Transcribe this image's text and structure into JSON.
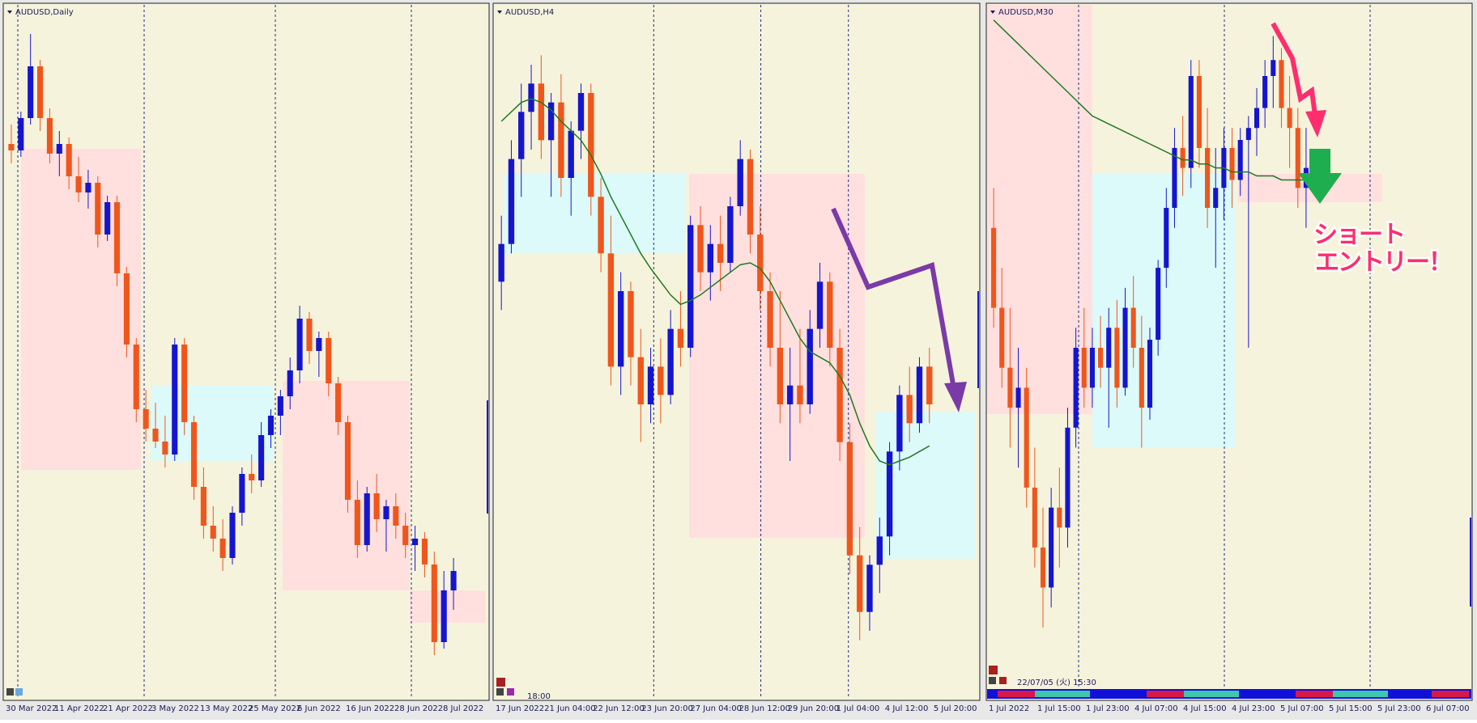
{
  "chart_data": [
    {
      "type": "candlestick",
      "title": "AUDUSD,Daily",
      "up_color": "#1515d0",
      "down_color": "#f0561c",
      "x_labels": [
        "30 Mar 2022",
        "11 Apr 2022",
        "21 Apr 2022",
        "3 May 2022",
        "13 May 2022",
        "25 May 2022",
        "6 Jun 2022",
        "16 Jun 2022",
        "28 Jun 2022",
        "8 Jul 2022"
      ],
      "ylim": [
        0.665,
        0.77
      ],
      "ohlc": [
        [
          0.749,
          0.752,
          0.746,
          0.748
        ],
        [
          0.748,
          0.754,
          0.747,
          0.753
        ],
        [
          0.753,
          0.766,
          0.752,
          0.761
        ],
        [
          0.761,
          0.762,
          0.751,
          0.753
        ],
        [
          0.753,
          0.7545,
          0.746,
          0.7475
        ],
        [
          0.7475,
          0.751,
          0.744,
          0.749
        ],
        [
          0.749,
          0.75,
          0.742,
          0.744
        ],
        [
          0.744,
          0.747,
          0.74,
          0.7415
        ],
        [
          0.7415,
          0.745,
          0.739,
          0.743
        ],
        [
          0.743,
          0.744,
          0.733,
          0.735
        ],
        [
          0.735,
          0.741,
          0.734,
          0.74
        ],
        [
          0.74,
          0.741,
          0.727,
          0.729
        ],
        [
          0.729,
          0.73,
          0.716,
          0.718
        ],
        [
          0.718,
          0.719,
          0.706,
          0.708
        ],
        [
          0.708,
          0.711,
          0.703,
          0.705
        ],
        [
          0.705,
          0.709,
          0.702,
          0.703
        ],
        [
          0.703,
          0.707,
          0.699,
          0.701
        ],
        [
          0.701,
          0.719,
          0.7,
          0.718
        ],
        [
          0.718,
          0.719,
          0.704,
          0.706
        ],
        [
          0.706,
          0.707,
          0.694,
          0.696
        ],
        [
          0.696,
          0.699,
          0.688,
          0.69
        ],
        [
          0.69,
          0.693,
          0.686,
          0.688
        ],
        [
          0.688,
          0.691,
          0.683,
          0.685
        ],
        [
          0.685,
          0.693,
          0.684,
          0.692
        ],
        [
          0.692,
          0.699,
          0.69,
          0.698
        ],
        [
          0.698,
          0.701,
          0.695,
          0.697
        ],
        [
          0.697,
          0.706,
          0.696,
          0.704
        ],
        [
          0.704,
          0.708,
          0.702,
          0.707
        ],
        [
          0.707,
          0.711,
          0.704,
          0.71
        ],
        [
          0.71,
          0.716,
          0.708,
          0.714
        ],
        [
          0.714,
          0.724,
          0.712,
          0.722
        ],
        [
          0.722,
          0.723,
          0.715,
          0.717
        ],
        [
          0.717,
          0.72,
          0.713,
          0.719
        ],
        [
          0.719,
          0.72,
          0.71,
          0.712
        ],
        [
          0.712,
          0.713,
          0.704,
          0.706
        ],
        [
          0.706,
          0.707,
          0.692,
          0.694
        ],
        [
          0.694,
          0.697,
          0.685,
          0.687
        ],
        [
          0.687,
          0.696,
          0.686,
          0.695
        ],
        [
          0.695,
          0.698,
          0.689,
          0.691
        ],
        [
          0.691,
          0.694,
          0.686,
          0.693
        ],
        [
          0.693,
          0.695,
          0.688,
          0.69
        ],
        [
          0.69,
          0.692,
          0.685,
          0.687
        ],
        [
          0.687,
          0.69,
          0.683,
          0.688
        ],
        [
          0.688,
          0.689,
          0.682,
          0.684
        ],
        [
          0.684,
          0.686,
          0.67,
          0.672
        ],
        [
          0.672,
          0.683,
          0.671,
          0.68
        ],
        [
          0.68,
          0.685,
          0.677,
          0.683
        ]
      ]
    },
    {
      "type": "candlestick",
      "title": "AUDUSD,H4",
      "up_color": "#1515d0",
      "down_color": "#f0561c",
      "ma_color": "#1f7a1f",
      "x_labels": [
        "17 Jun 2022",
        "21 Jun 04:00",
        "22 Jun 12:00",
        "23 Jun 20:00",
        "27 Jun 04:00",
        "28 Jun 12:00",
        "29 Jun 20:00",
        "1 Jul 04:00",
        "4 Jul 12:00",
        "5 Jul 20:00"
      ],
      "ylim": [
        0.674,
        0.71
      ],
      "ohlc": [
        [
          0.6955,
          0.699,
          0.694,
          0.6975
        ],
        [
          0.6975,
          0.703,
          0.697,
          0.702
        ],
        [
          0.702,
          0.706,
          0.7,
          0.7045
        ],
        [
          0.7045,
          0.707,
          0.7025,
          0.706
        ],
        [
          0.706,
          0.7075,
          0.702,
          0.703
        ],
        [
          0.703,
          0.7055,
          0.7,
          0.705
        ],
        [
          0.705,
          0.7065,
          0.7,
          0.701
        ],
        [
          0.701,
          0.704,
          0.699,
          0.7035
        ],
        [
          0.7035,
          0.706,
          0.702,
          0.7055
        ],
        [
          0.7055,
          0.706,
          0.699,
          0.7
        ],
        [
          0.7,
          0.701,
          0.696,
          0.697
        ],
        [
          0.697,
          0.699,
          0.69,
          0.691
        ],
        [
          0.691,
          0.696,
          0.6895,
          0.695
        ],
        [
          0.695,
          0.6955,
          0.69,
          0.6915
        ],
        [
          0.6915,
          0.693,
          0.687,
          0.689
        ],
        [
          0.689,
          0.692,
          0.688,
          0.691
        ],
        [
          0.691,
          0.6925,
          0.688,
          0.6895
        ],
        [
          0.6895,
          0.694,
          0.689,
          0.693
        ],
        [
          0.693,
          0.695,
          0.691,
          0.692
        ],
        [
          0.692,
          0.699,
          0.6915,
          0.6985
        ],
        [
          0.6985,
          0.6995,
          0.695,
          0.696
        ],
        [
          0.696,
          0.6985,
          0.6945,
          0.6975
        ],
        [
          0.6975,
          0.699,
          0.695,
          0.6965
        ],
        [
          0.6965,
          0.7,
          0.696,
          0.6995
        ],
        [
          0.6995,
          0.703,
          0.699,
          0.702
        ],
        [
          0.702,
          0.7025,
          0.697,
          0.698
        ],
        [
          0.698,
          0.6995,
          0.694,
          0.695
        ],
        [
          0.695,
          0.696,
          0.691,
          0.692
        ],
        [
          0.692,
          0.695,
          0.688,
          0.689
        ],
        [
          0.689,
          0.692,
          0.686,
          0.69
        ],
        [
          0.69,
          0.693,
          0.688,
          0.689
        ],
        [
          0.689,
          0.694,
          0.6885,
          0.693
        ],
        [
          0.693,
          0.6965,
          0.692,
          0.6955
        ],
        [
          0.6955,
          0.696,
          0.691,
          0.692
        ],
        [
          0.692,
          0.693,
          0.686,
          0.687
        ],
        [
          0.687,
          0.688,
          0.68,
          0.681
        ],
        [
          0.681,
          0.6825,
          0.6765,
          0.678
        ],
        [
          0.678,
          0.681,
          0.677,
          0.6805
        ],
        [
          0.6805,
          0.683,
          0.679,
          0.682
        ],
        [
          0.682,
          0.687,
          0.681,
          0.6865
        ],
        [
          0.6865,
          0.69,
          0.6855,
          0.6895
        ],
        [
          0.6895,
          0.691,
          0.687,
          0.688
        ],
        [
          0.688,
          0.6915,
          0.6875,
          0.691
        ],
        [
          0.691,
          0.692,
          0.688,
          0.689
        ]
      ],
      "ma_values": [
        0.704,
        0.7045,
        0.705,
        0.7052,
        0.705,
        0.7046,
        0.704,
        0.7035,
        0.703,
        0.7022,
        0.7012,
        0.7,
        0.699,
        0.698,
        0.697,
        0.6962,
        0.6955,
        0.6948,
        0.6943,
        0.6945,
        0.6948,
        0.6952,
        0.6956,
        0.696,
        0.6964,
        0.6965,
        0.6962,
        0.6955,
        0.6945,
        0.6935,
        0.6925,
        0.6918,
        0.6915,
        0.6912,
        0.6905,
        0.6895,
        0.688,
        0.6868,
        0.686,
        0.6858,
        0.686,
        0.6862,
        0.6865,
        0.6868
      ]
    },
    {
      "type": "candlestick",
      "title": "AUDUSD,M30",
      "up_color": "#1515d0",
      "down_color": "#f0561c",
      "ma_color": "#1f7a1f",
      "x_labels": [
        "1 Jul 2022",
        "1 Jul 15:00",
        "1 Jul 23:00",
        "4 Jul 07:00",
        "4 Jul 15:00",
        "4 Jul 23:00",
        "5 Jul 07:00",
        "5 Jul 15:00",
        "5 Jul 23:00",
        "6 Jul 07:00"
      ],
      "ylim": [
        0.6755,
        0.6925
      ],
      "ohlc": [
        [
          0.687,
          0.688,
          0.6845,
          0.685
        ],
        [
          0.685,
          0.686,
          0.683,
          0.6835
        ],
        [
          0.6835,
          0.685,
          0.6815,
          0.6825
        ],
        [
          0.6825,
          0.684,
          0.681,
          0.683
        ],
        [
          0.683,
          0.6835,
          0.68,
          0.6805
        ],
        [
          0.6805,
          0.6815,
          0.6785,
          0.679
        ],
        [
          0.679,
          0.68,
          0.677,
          0.678
        ],
        [
          0.678,
          0.6805,
          0.6775,
          0.68
        ],
        [
          0.68,
          0.681,
          0.6785,
          0.6795
        ],
        [
          0.6795,
          0.6825,
          0.679,
          0.682
        ],
        [
          0.682,
          0.6845,
          0.6815,
          0.684
        ],
        [
          0.684,
          0.685,
          0.6825,
          0.683
        ],
        [
          0.683,
          0.6845,
          0.6825,
          0.684
        ],
        [
          0.684,
          0.6848,
          0.683,
          0.6835
        ],
        [
          0.6835,
          0.685,
          0.682,
          0.6845
        ],
        [
          0.6845,
          0.6852,
          0.6825,
          0.683
        ],
        [
          0.683,
          0.6855,
          0.6828,
          0.685
        ],
        [
          0.685,
          0.6858,
          0.6835,
          0.684
        ],
        [
          0.684,
          0.6848,
          0.6815,
          0.6825
        ],
        [
          0.6825,
          0.6845,
          0.6822,
          0.6842
        ],
        [
          0.6842,
          0.6862,
          0.6838,
          0.686
        ],
        [
          0.686,
          0.688,
          0.6855,
          0.6875
        ],
        [
          0.6875,
          0.6895,
          0.687,
          0.689
        ],
        [
          0.689,
          0.6898,
          0.6878,
          0.6885
        ],
        [
          0.6885,
          0.6912,
          0.688,
          0.6908
        ],
        [
          0.6908,
          0.6912,
          0.6885,
          0.689
        ],
        [
          0.689,
          0.69,
          0.687,
          0.6875
        ],
        [
          0.6875,
          0.689,
          0.686,
          0.688
        ],
        [
          0.688,
          0.6895,
          0.6872,
          0.689
        ],
        [
          0.689,
          0.6895,
          0.6875,
          0.6882
        ],
        [
          0.6882,
          0.6895,
          0.6878,
          0.6892
        ],
        [
          0.6892,
          0.6898,
          0.684,
          0.6895
        ],
        [
          0.6895,
          0.6905,
          0.6888,
          0.69
        ],
        [
          0.69,
          0.6912,
          0.6895,
          0.6908
        ],
        [
          0.6908,
          0.6918,
          0.69,
          0.6912
        ],
        [
          0.6912,
          0.6915,
          0.6895,
          0.69
        ],
        [
          0.69,
          0.6908,
          0.6885,
          0.6895
        ],
        [
          0.6895,
          0.69,
          0.6875,
          0.688
        ],
        [
          0.688,
          0.6895,
          0.687,
          0.6885
        ]
      ],
      "ma_values": [
        0.6922,
        0.692,
        0.6918,
        0.6916,
        0.6914,
        0.6912,
        0.691,
        0.6908,
        0.6906,
        0.6904,
        0.6902,
        0.69,
        0.6898,
        0.6897,
        0.6896,
        0.6895,
        0.6894,
        0.6893,
        0.6892,
        0.6891,
        0.689,
        0.6889,
        0.6888,
        0.6887,
        0.6887,
        0.6886,
        0.6886,
        0.6885,
        0.6885,
        0.6884,
        0.6884,
        0.6884,
        0.6883,
        0.6883,
        0.6883,
        0.6882,
        0.6882,
        0.6882,
        0.6882
      ]
    }
  ],
  "annotations": {
    "entry": [
      "ショート",
      "エントリー！"
    ],
    "h4_time": "18:00",
    "m30_time": "22/07/05 (火) 15:30"
  }
}
